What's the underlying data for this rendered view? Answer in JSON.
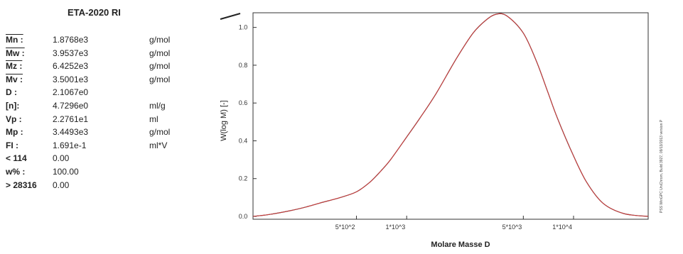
{
  "results": {
    "title": "ETA-2020 RI",
    "rows": [
      {
        "label": "Mn :",
        "value": "1.8768e3",
        "unit": "g/mol"
      },
      {
        "label": "Mw :",
        "value": "3.9537e3",
        "unit": "g/mol"
      },
      {
        "label": "Mz :",
        "value": "6.4252e3",
        "unit": "g/mol"
      },
      {
        "label": "Mv :",
        "value": "3.5001e3",
        "unit": "g/mol"
      },
      {
        "label": "D  :",
        "value": "2.1067e0",
        "unit": ""
      },
      {
        "label": "[n]:",
        "value": "4.7296e0",
        "unit": "ml/g"
      },
      {
        "label": "Vp :",
        "value": "2.2761e1",
        "unit": "ml"
      },
      {
        "label": "Mp :",
        "value": "3.4493e3",
        "unit": "g/mol"
      },
      {
        "label": "FI :",
        "value": "1.691e-1",
        "unit": "ml*V"
      },
      {
        "label": "< 114",
        "value": "0.00",
        "unit": ""
      },
      {
        "label": "w% :",
        "value": "100.00",
        "unit": ""
      },
      {
        "label": "> 28316",
        "value": "0.00",
        "unit": ""
      }
    ]
  },
  "chart_data": {
    "type": "line",
    "xlabel": "Molare Masse D",
    "ylabel": "W(log M) [-]",
    "x_scale": "log",
    "xlim": [
      120,
      28000
    ],
    "ylim": [
      0,
      1.07
    ],
    "x_ticks": [
      {
        "value": 500,
        "label": "5*10^2"
      },
      {
        "value": 1000,
        "label": "1*10^3"
      },
      {
        "value": 5000,
        "label": "5*10^3"
      },
      {
        "value": 10000,
        "label": "1*10^4"
      }
    ],
    "y_ticks": [
      0.0,
      0.2,
      0.4,
      0.6,
      0.8,
      1.0
    ],
    "y_tick_labels": [
      "0.0",
      "0.2",
      "0.4",
      "0.6",
      "0.8",
      "1.0"
    ],
    "series": [
      {
        "color": "#d23c3c",
        "x": [
          120,
          150,
          200,
          250,
          300,
          400,
          500,
          600,
          700,
          800,
          1000,
          1200,
          1500,
          2000,
          2500,
          3000,
          3450,
          4000,
          5000,
          6000,
          7000,
          8000,
          10000,
          12000,
          15000,
          20000,
          28000
        ],
        "y": [
          0.0,
          0.01,
          0.03,
          0.05,
          0.07,
          0.1,
          0.13,
          0.18,
          0.24,
          0.3,
          0.42,
          0.52,
          0.65,
          0.84,
          0.97,
          1.04,
          1.07,
          1.06,
          0.97,
          0.82,
          0.66,
          0.52,
          0.32,
          0.18,
          0.07,
          0.015,
          0.0
        ]
      }
    ]
  },
  "side_text": "PSS WinGPC UniChrom, Build 3927, 09/13/2013 version P"
}
